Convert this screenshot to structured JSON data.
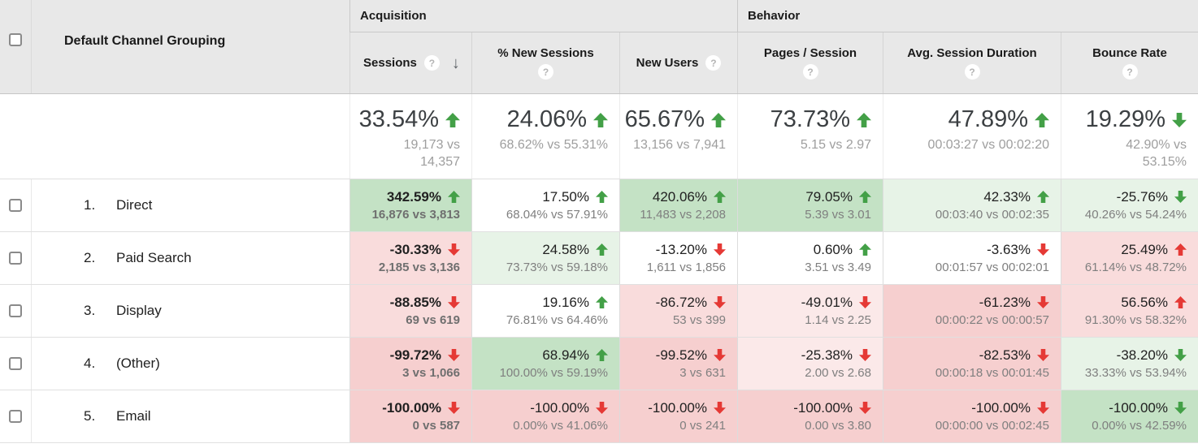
{
  "colors": {
    "positive_green": "#43a047",
    "negative_red": "#e53935",
    "header_bg": "#e8e8e8",
    "bg_white": "#ffffff",
    "bg_green_strong": "#c4e2c5",
    "bg_green_light": "#e7f3e7",
    "bg_red_light": "#fbe9e9",
    "bg_red_mid": "#f9dcdc",
    "bg_red_strong": "#f6cfcf"
  },
  "table": {
    "dimension_header": "Default Channel Grouping",
    "help_glyph": "?",
    "sort_glyph": "↓",
    "group_headers": [
      {
        "label": "Acquisition"
      },
      {
        "label": "Behavior"
      }
    ],
    "columns": [
      {
        "label": "Sessions",
        "help": true,
        "sorted_desc": true
      },
      {
        "label": "% New Sessions",
        "help": true
      },
      {
        "label": "New Users",
        "help": true
      },
      {
        "label": "Pages / Session",
        "help": true
      },
      {
        "label": "Avg. Session Duration",
        "help": true
      },
      {
        "label": "Bounce Rate",
        "help": true
      }
    ],
    "summary_cells": [
      {
        "pct": "33.54%",
        "direction": "up",
        "sentiment": "good",
        "sub": "19,173 vs 14,357",
        "wrap": true
      },
      {
        "pct": "24.06%",
        "direction": "up",
        "sentiment": "good",
        "sub": "68.62% vs 55.31%",
        "wrap": false
      },
      {
        "pct": "65.67%",
        "direction": "up",
        "sentiment": "good",
        "sub": "13,156 vs 7,941",
        "wrap": false
      },
      {
        "pct": "73.73%",
        "direction": "up",
        "sentiment": "good",
        "sub": "5.15 vs 2.97",
        "wrap": false
      },
      {
        "pct": "47.89%",
        "direction": "up",
        "sentiment": "good",
        "sub": "00:03:27 vs 00:02:20",
        "wrap": false
      },
      {
        "pct": "19.29%",
        "direction": "down",
        "sentiment": "good",
        "sub": "42.90% vs 53.15%",
        "wrap": true
      }
    ],
    "rows": [
      {
        "num": "1.",
        "label": "Direct",
        "cells": [
          {
            "pct": "342.59%",
            "direction": "up",
            "sentiment": "good",
            "sub": "16,876 vs 3,813",
            "bg": "green_strong"
          },
          {
            "pct": "17.50%",
            "direction": "up",
            "sentiment": "good",
            "sub": "68.04% vs 57.91%",
            "bg": "white"
          },
          {
            "pct": "420.06%",
            "direction": "up",
            "sentiment": "good",
            "sub": "11,483 vs 2,208",
            "bg": "green_strong"
          },
          {
            "pct": "79.05%",
            "direction": "up",
            "sentiment": "good",
            "sub": "5.39 vs 3.01",
            "bg": "green_strong"
          },
          {
            "pct": "42.33%",
            "direction": "up",
            "sentiment": "good",
            "sub": "00:03:40 vs 00:02:35",
            "bg": "green_light"
          },
          {
            "pct": "-25.76%",
            "direction": "down",
            "sentiment": "good",
            "sub": "40.26% vs 54.24%",
            "bg": "green_light"
          }
        ]
      },
      {
        "num": "2.",
        "label": "Paid Search",
        "cells": [
          {
            "pct": "-30.33%",
            "direction": "down",
            "sentiment": "bad",
            "sub": "2,185 vs 3,136",
            "bg": "red_mid"
          },
          {
            "pct": "24.58%",
            "direction": "up",
            "sentiment": "good",
            "sub": "73.73% vs 59.18%",
            "bg": "green_light"
          },
          {
            "pct": "-13.20%",
            "direction": "down",
            "sentiment": "bad",
            "sub": "1,611 vs 1,856",
            "bg": "white"
          },
          {
            "pct": "0.60%",
            "direction": "up",
            "sentiment": "good",
            "sub": "3.51 vs 3.49",
            "bg": "white"
          },
          {
            "pct": "-3.63%",
            "direction": "down",
            "sentiment": "bad",
            "sub": "00:01:57 vs 00:02:01",
            "bg": "white"
          },
          {
            "pct": "25.49%",
            "direction": "up",
            "sentiment": "bad",
            "sub": "61.14% vs 48.72%",
            "bg": "red_mid"
          }
        ]
      },
      {
        "num": "3.",
        "label": "Display",
        "cells": [
          {
            "pct": "-88.85%",
            "direction": "down",
            "sentiment": "bad",
            "sub": "69 vs 619",
            "bg": "red_mid"
          },
          {
            "pct": "19.16%",
            "direction": "up",
            "sentiment": "good",
            "sub": "76.81% vs 64.46%",
            "bg": "white"
          },
          {
            "pct": "-86.72%",
            "direction": "down",
            "sentiment": "bad",
            "sub": "53 vs 399",
            "bg": "red_mid"
          },
          {
            "pct": "-49.01%",
            "direction": "down",
            "sentiment": "bad",
            "sub": "1.14 vs 2.25",
            "bg": "red_light"
          },
          {
            "pct": "-61.23%",
            "direction": "down",
            "sentiment": "bad",
            "sub": "00:00:22 vs 00:00:57",
            "bg": "red_strong"
          },
          {
            "pct": "56.56%",
            "direction": "up",
            "sentiment": "bad",
            "sub": "91.30% vs 58.32%",
            "bg": "red_mid"
          }
        ]
      },
      {
        "num": "4.",
        "label": "(Other)",
        "cells": [
          {
            "pct": "-99.72%",
            "direction": "down",
            "sentiment": "bad",
            "sub": "3 vs 1,066",
            "bg": "red_strong"
          },
          {
            "pct": "68.94%",
            "direction": "up",
            "sentiment": "good",
            "sub": "100.00% vs 59.19%",
            "bg": "green_strong"
          },
          {
            "pct": "-99.52%",
            "direction": "down",
            "sentiment": "bad",
            "sub": "3 vs 631",
            "bg": "red_strong"
          },
          {
            "pct": "-25.38%",
            "direction": "down",
            "sentiment": "bad",
            "sub": "2.00 vs 2.68",
            "bg": "red_light"
          },
          {
            "pct": "-82.53%",
            "direction": "down",
            "sentiment": "bad",
            "sub": "00:00:18 vs 00:01:45",
            "bg": "red_strong"
          },
          {
            "pct": "-38.20%",
            "direction": "down",
            "sentiment": "good",
            "sub": "33.33% vs 53.94%",
            "bg": "green_light"
          }
        ]
      },
      {
        "num": "5.",
        "label": "Email",
        "cells": [
          {
            "pct": "-100.00%",
            "direction": "down",
            "sentiment": "bad",
            "sub": "0 vs 587",
            "bg": "red_strong"
          },
          {
            "pct": "-100.00%",
            "direction": "down",
            "sentiment": "bad",
            "sub": "0.00% vs 41.06%",
            "bg": "red_strong"
          },
          {
            "pct": "-100.00%",
            "direction": "down",
            "sentiment": "bad",
            "sub": "0 vs 241",
            "bg": "red_strong"
          },
          {
            "pct": "-100.00%",
            "direction": "down",
            "sentiment": "bad",
            "sub": "0.00 vs 3.80",
            "bg": "red_strong"
          },
          {
            "pct": "-100.00%",
            "direction": "down",
            "sentiment": "bad",
            "sub": "00:00:00 vs 00:02:45",
            "bg": "red_strong"
          },
          {
            "pct": "-100.00%",
            "direction": "down",
            "sentiment": "good",
            "sub": "0.00% vs 42.59%",
            "bg": "green_strong"
          }
        ]
      }
    ]
  }
}
